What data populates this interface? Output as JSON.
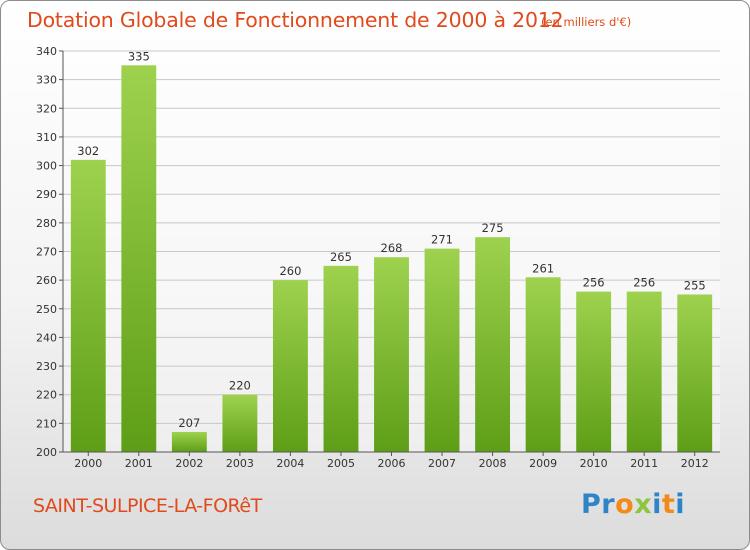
{
  "chart_data": {
    "type": "bar",
    "title": "Dotation Globale de Fonctionnement de 2000 à 2012",
    "subtitle": "(en milliers d'€)",
    "categories": [
      "2000",
      "2001",
      "2002",
      "2003",
      "2004",
      "2005",
      "2006",
      "2007",
      "2008",
      "2009",
      "2010",
      "2011",
      "2012"
    ],
    "values": [
      302,
      335,
      207,
      220,
      260,
      265,
      268,
      271,
      275,
      261,
      256,
      256,
      255
    ],
    "ylim": [
      200,
      340
    ],
    "yticks": [
      200,
      210,
      220,
      230,
      240,
      250,
      260,
      270,
      280,
      290,
      300,
      310,
      320,
      330,
      340
    ],
    "grid": true,
    "bar_color": "#8cc63f",
    "bar_color_dark": "#5e9e17"
  },
  "footer": {
    "commune": "SAINT-SULPICE-LA-FORêT",
    "logo_letters": [
      {
        "ch": "P",
        "color": "#2f84c8"
      },
      {
        "ch": "r",
        "color": "#2f84c8"
      },
      {
        "ch": "o",
        "color": "#f28a1a"
      },
      {
        "ch": "x",
        "color": "#8cc63f"
      },
      {
        "ch": "i",
        "color": "#2f84c8"
      },
      {
        "ch": "t",
        "color": "#f28a1a"
      },
      {
        "ch": "i",
        "color": "#2f84c8"
      }
    ]
  },
  "colors": {
    "title": "#e04a1c",
    "axis_text": "#333333",
    "grid": "#c8c8c8"
  }
}
